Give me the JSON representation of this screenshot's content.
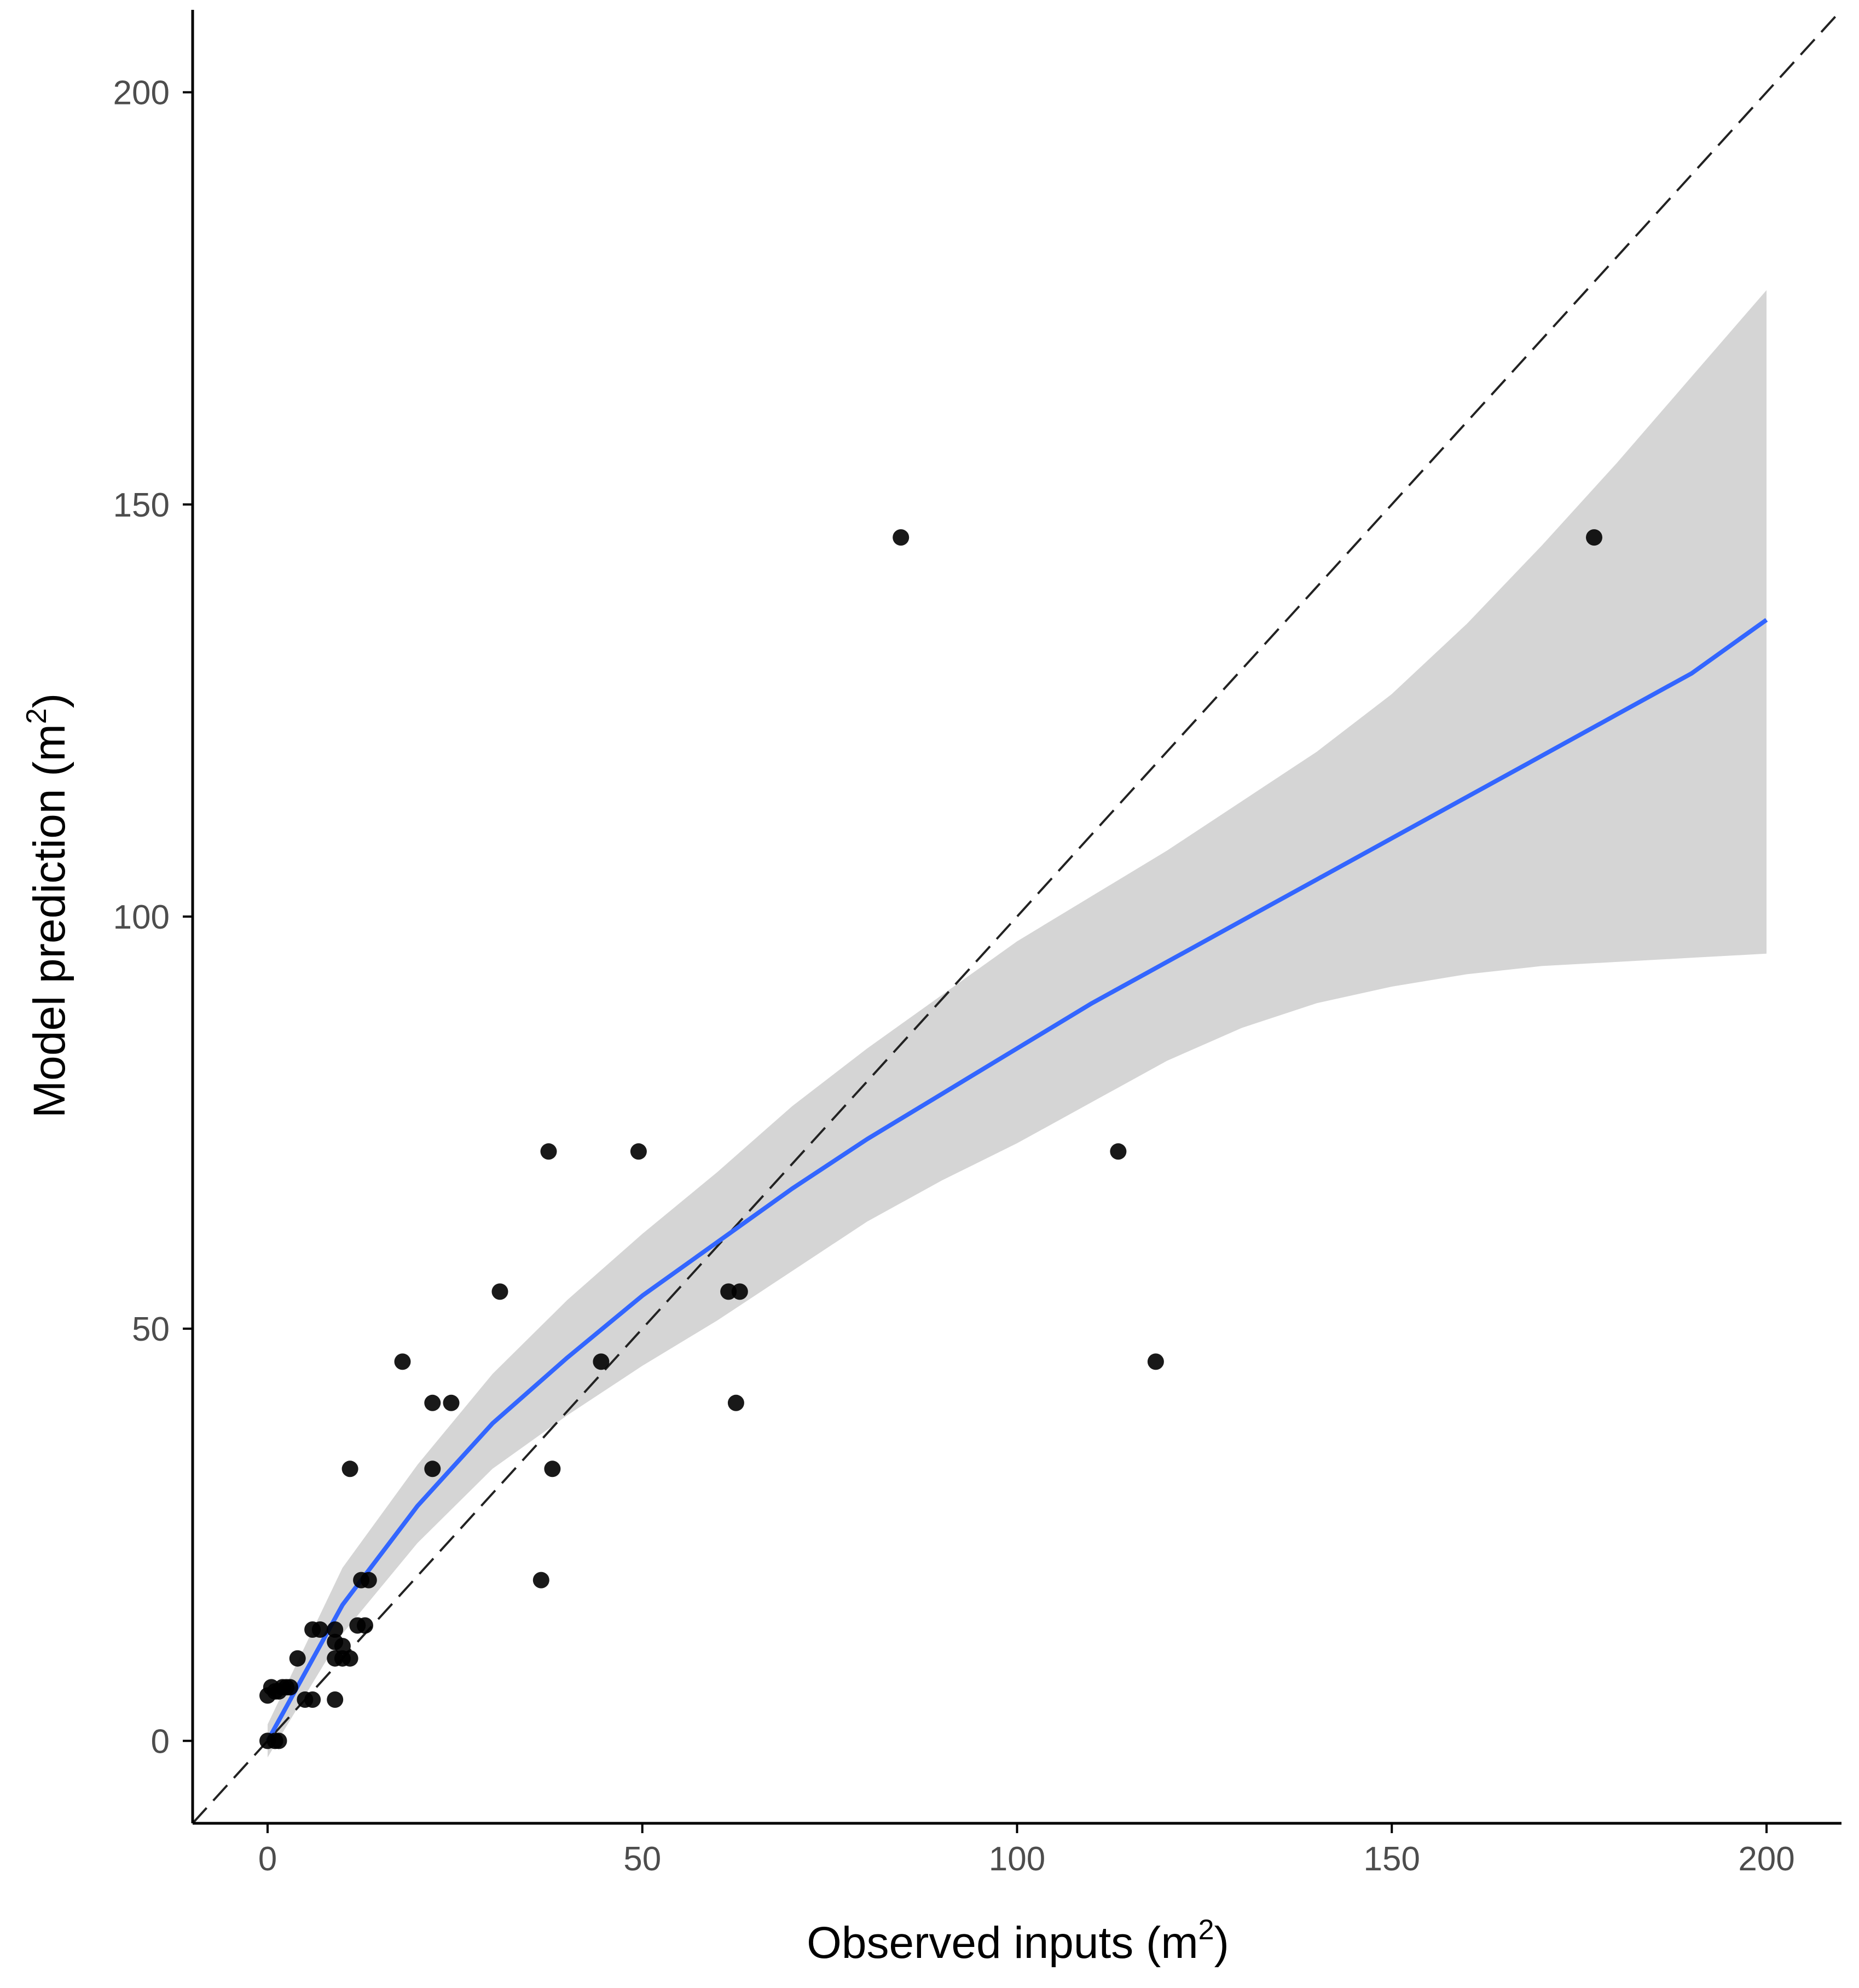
{
  "chart_data": {
    "type": "scatter",
    "xlabel": "Observed inputs",
    "xlabel_unit": "m",
    "xlabel_sup": "2",
    "ylabel": "Model prediction",
    "ylabel_unit": "m",
    "ylabel_sup": "2",
    "xlim": [
      -10,
      210
    ],
    "ylim": [
      -10,
      210
    ],
    "x_ticks": [
      0,
      50,
      100,
      150,
      200
    ],
    "y_ticks": [
      0,
      50,
      100,
      150,
      200
    ],
    "grid": false,
    "colors": {
      "points": "#000000",
      "smooth_line": "#3366ff",
      "confidence_band": "#d3d3d3",
      "identity_line": "#222222",
      "axis": "#000000"
    },
    "series": [
      {
        "kind": "points",
        "points": [
          [
            0.0,
            0.0
          ],
          [
            1.0,
            0.0
          ],
          [
            1.5,
            0.0
          ],
          [
            0.0,
            5.5
          ],
          [
            0.5,
            6.5
          ],
          [
            1.0,
            6.0
          ],
          [
            1.5,
            6.0
          ],
          [
            2.0,
            6.5
          ],
          [
            2.5,
            6.5
          ],
          [
            3.0,
            6.5
          ],
          [
            4.0,
            10.0
          ],
          [
            5.0,
            5.0
          ],
          [
            6.0,
            5.0
          ],
          [
            6.0,
            13.5
          ],
          [
            7.0,
            13.5
          ],
          [
            9.0,
            5.0
          ],
          [
            9.0,
            10.0
          ],
          [
            9.0,
            12.0
          ],
          [
            9.0,
            13.5
          ],
          [
            10.0,
            10.0
          ],
          [
            10.0,
            11.5
          ],
          [
            11.0,
            10.0
          ],
          [
            11.0,
            33.0
          ],
          [
            12.0,
            14.0
          ],
          [
            12.5,
            19.5
          ],
          [
            13.0,
            14.0
          ],
          [
            13.5,
            19.5
          ],
          [
            18.0,
            46.0
          ],
          [
            22.0,
            33.0
          ],
          [
            22.0,
            41.0
          ],
          [
            24.5,
            41.0
          ],
          [
            31.0,
            54.5
          ],
          [
            36.5,
            19.5
          ],
          [
            37.5,
            71.5
          ],
          [
            38.0,
            33.0
          ],
          [
            44.5,
            46.0
          ],
          [
            49.5,
            71.5
          ],
          [
            61.5,
            54.5
          ],
          [
            62.5,
            41.0
          ],
          [
            63.0,
            54.5
          ],
          [
            84.5,
            146.0
          ],
          [
            113.5,
            71.5
          ],
          [
            118.5,
            46.0
          ],
          [
            177.0,
            146.0
          ]
        ]
      },
      {
        "kind": "smooth",
        "x": [
          0,
          10,
          20,
          30,
          40,
          50,
          60,
          70,
          80,
          90,
          100,
          110,
          120,
          130,
          140,
          150,
          160,
          170,
          180,
          190,
          200
        ],
        "y": [
          0,
          16.5,
          28.5,
          38.5,
          46.5,
          54,
          60.5,
          67,
          73,
          78.5,
          84,
          89.5,
          94.5,
          99.5,
          104.5,
          109.5,
          114.5,
          119.5,
          124.5,
          129.5,
          136
        ],
        "lower": [
          -2,
          13,
          24,
          33,
          39.5,
          45.5,
          51,
          57,
          63,
          68,
          72.5,
          77.5,
          82.5,
          86.5,
          89.5,
          91.5,
          93,
          94,
          94.5,
          95,
          95.5
        ],
        "upper": [
          2,
          21,
          33.5,
          44.5,
          53.5,
          61.5,
          69,
          77,
          84,
          90.5,
          97,
          102.5,
          108,
          114,
          120,
          127,
          135.5,
          145,
          155,
          165.5,
          176
        ]
      },
      {
        "kind": "identity",
        "x": [
          -10,
          210
        ],
        "y": [
          -10,
          210
        ]
      }
    ]
  }
}
